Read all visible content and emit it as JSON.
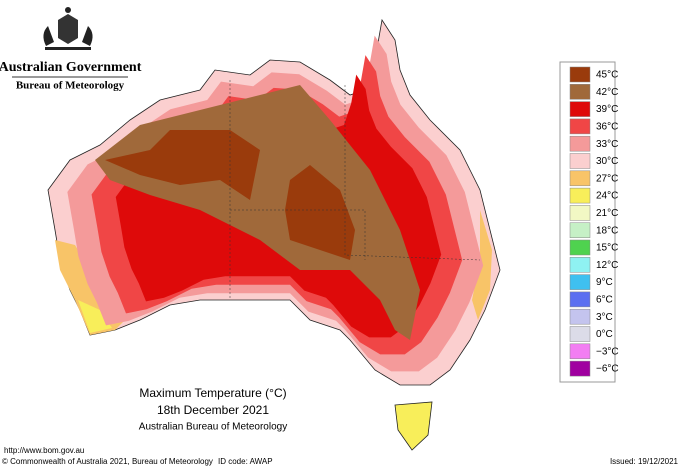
{
  "header": {
    "government": "Australian Government",
    "bureau": "Bureau of Meteorology"
  },
  "legend": [
    {
      "label": "45°C",
      "color": "#9a3b0c"
    },
    {
      "label": "42°C",
      "color": "#a0693a"
    },
    {
      "label": "39°C",
      "color": "#de0a0a"
    },
    {
      "label": "36°C",
      "color": "#f04646"
    },
    {
      "label": "33°C",
      "color": "#f49a9a"
    },
    {
      "label": "30°C",
      "color": "#fbcfcf"
    },
    {
      "label": "27°C",
      "color": "#f8c468"
    },
    {
      "label": "24°C",
      "color": "#f8ee5a"
    },
    {
      "label": "21°C",
      "color": "#f2f8c4"
    },
    {
      "label": "18°C",
      "color": "#c6f0c6"
    },
    {
      "label": "15°C",
      "color": "#4fd24f"
    },
    {
      "label": "12°C",
      "color": "#8ff2f2"
    },
    {
      "label": "9°C",
      "color": "#3fc0f0"
    },
    {
      "label": "6°C",
      "color": "#5b6ff0"
    },
    {
      "label": "3°C",
      "color": "#c4c4ee"
    },
    {
      "label": "0°C",
      "color": "#dcdce8"
    },
    {
      "label": "−3°C",
      "color": "#f27ef2"
    },
    {
      "label": "−6°C",
      "color": "#a000a0"
    }
  ],
  "title": {
    "line1": "Maximum Temperature (°C)",
    "line2": "18th December 2021",
    "line3": "Australian Bureau of Meteorology"
  },
  "footer": {
    "url": "http://www.bom.gov.au",
    "copyright": "© Commonwealth of Australia 2021, Bureau of Meteorology",
    "id": "ID code: AWAP",
    "issued": "Issued: 19/12/2021"
  }
}
